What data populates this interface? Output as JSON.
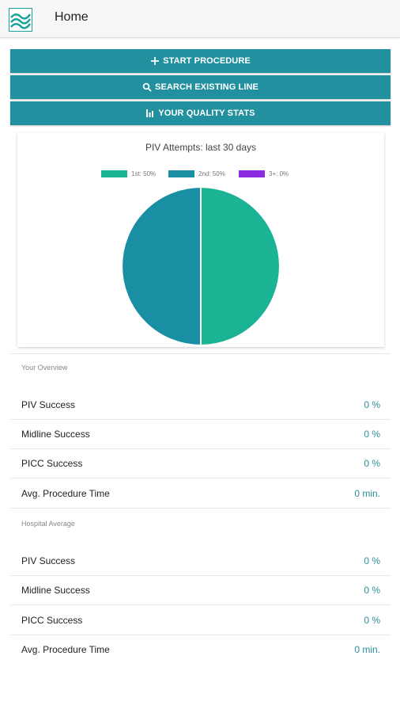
{
  "app": {
    "title": "Home",
    "logo_icon": "waves-logo-icon"
  },
  "actions": [
    {
      "label": "START PROCEDURE",
      "icon": "plus-icon"
    },
    {
      "label": "SEARCH EXISTING LINE",
      "icon": "search-icon"
    },
    {
      "label": "YOUR QUALITY STATS",
      "icon": "bar-chart-icon"
    }
  ],
  "chart": {
    "title": "PIV Attempts: last 30 days",
    "legend": [
      {
        "label": "1st: 50%",
        "color": "#1ab394"
      },
      {
        "label": "2nd: 50%",
        "color": "#1a8ea3"
      },
      {
        "label": "3+: 0%",
        "color": "#8a2be2"
      }
    ]
  },
  "chart_data": {
    "type": "pie",
    "title": "PIV Attempts: last 30 days",
    "categories": [
      "1st",
      "2nd",
      "3+"
    ],
    "values": [
      50,
      50,
      0
    ],
    "colors": [
      "#1ab394",
      "#1a8ea3",
      "#8a2be2"
    ],
    "legend_position": "top"
  },
  "overview": {
    "label": "Your Overview",
    "rows": [
      {
        "label": "PIV Success",
        "value": "0 %"
      },
      {
        "label": "Midline Success",
        "value": "0 %"
      },
      {
        "label": "PICC Success",
        "value": "0 %"
      },
      {
        "label": "Avg. Procedure Time",
        "value": "0 min."
      }
    ]
  },
  "hospital": {
    "label": "Hospital Average",
    "rows": [
      {
        "label": "PIV Success",
        "value": "0 %"
      },
      {
        "label": "Midline Success",
        "value": "0 %"
      },
      {
        "label": "PICC Success",
        "value": "0 %"
      },
      {
        "label": "Avg. Procedure Time",
        "value": "0 min."
      }
    ]
  }
}
